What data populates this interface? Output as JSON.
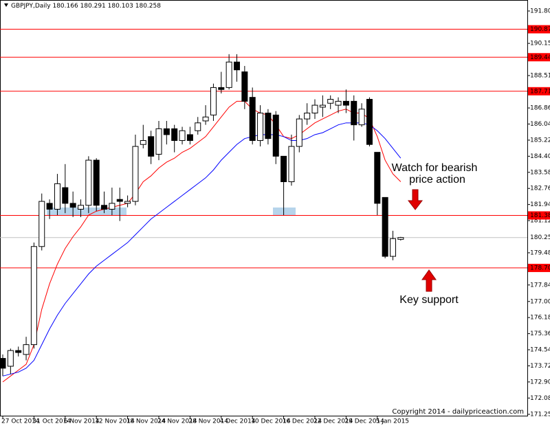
{
  "chart_data": {
    "type": "candlestick",
    "symbol": "GBPJPY,Daily",
    "header_values": [
      180.166,
      180.291,
      180.103,
      180.258
    ],
    "categories": [
      "27 Oct 2014",
      null,
      null,
      null,
      "31 Oct 2014",
      null,
      null,
      null,
      "6 Nov 2014",
      null,
      null,
      null,
      "12 Nov 2014",
      null,
      null,
      null,
      "18 Nov 2014",
      null,
      null,
      null,
      "24 Nov 2014",
      null,
      null,
      null,
      "28 Nov 2014",
      null,
      null,
      null,
      "4 Dec 2014",
      null,
      null,
      null,
      "10 Dec 2014",
      null,
      null,
      null,
      "16 Dec 2014",
      null,
      null,
      null,
      "22 Dec 2014",
      null,
      null,
      null,
      "29 Dec 2014",
      null,
      null,
      null,
      "5 Jan 2015",
      null,
      null,
      null
    ],
    "open": [
      174.1,
      173.7,
      174.5,
      174.3,
      174.8,
      179.8,
      182.0,
      181.7,
      182.8,
      182.0,
      181.7,
      181.9,
      184.2,
      181.9,
      181.7,
      182.2,
      182.0,
      182.1,
      185.0,
      185.4,
      184.5,
      185.8,
      185.8,
      185.2,
      185.5,
      185.7,
      186.2,
      186.5,
      187.9,
      187.9,
      189.2,
      188.7,
      187.4,
      185.2,
      186.6,
      186.5,
      184.4,
      183.1,
      184.9,
      186.3,
      186.6,
      186.9,
      187.1,
      187.0,
      187.2,
      187.2,
      186.0,
      187.3,
      184.6,
      182.3,
      179.3,
      180.166
    ],
    "high": [
      174.3,
      174.6,
      174.7,
      175.2,
      180.0,
      182.5,
      182.2,
      183.5,
      184.0,
      182.6,
      182.2,
      184.4,
      184.3,
      182.6,
      182.8,
      182.8,
      182.4,
      185.5,
      186.0,
      185.7,
      186.2,
      186.2,
      186.0,
      185.9,
      185.9,
      186.4,
      187.0,
      188.1,
      188.7,
      189.6,
      189.6,
      189.0,
      187.9,
      187.0,
      186.8,
      186.7,
      184.4,
      185.5,
      186.5,
      187.1,
      187.3,
      187.5,
      187.5,
      187.4,
      187.8,
      187.5,
      187.1,
      187.4,
      184.6,
      182.3,
      180.6,
      180.291
    ],
    "low": [
      173.2,
      173.3,
      174.2,
      174.0,
      174.6,
      179.6,
      181.2,
      181.4,
      181.5,
      181.3,
      181.3,
      181.5,
      181.6,
      181.5,
      181.4,
      181.1,
      181.8,
      181.9,
      184.8,
      184.0,
      184.2,
      185.0,
      184.6,
      185.0,
      185.0,
      185.5,
      186.0,
      186.2,
      187.6,
      187.8,
      188.2,
      186.8,
      185.0,
      184.9,
      185.0,
      184.0,
      181.4,
      182.9,
      184.6,
      186.0,
      186.3,
      186.4,
      186.8,
      186.6,
      186.6,
      185.2,
      185.9,
      184.9,
      181.4,
      179.2,
      179.1,
      180.103
    ],
    "close": [
      173.6,
      174.5,
      174.4,
      174.8,
      179.8,
      182.1,
      181.7,
      183.0,
      182.0,
      181.8,
      181.9,
      184.2,
      181.9,
      181.7,
      182.0,
      182.1,
      182.1,
      184.9,
      185.2,
      184.4,
      185.8,
      185.5,
      185.2,
      185.7,
      185.2,
      186.1,
      186.4,
      187.9,
      187.8,
      189.2,
      188.8,
      187.2,
      185.2,
      186.6,
      185.3,
      184.4,
      183.1,
      184.9,
      186.3,
      186.6,
      187.0,
      187.0,
      187.3,
      187.2,
      187.0,
      186.0,
      186.8,
      185.0,
      182.0,
      179.3,
      180.2,
      180.258
    ],
    "lines": [
      {
        "color": "#ff0000",
        "values": [
          172.9,
          173.2,
          173.5,
          173.8,
          174.8,
          176.6,
          177.9,
          178.9,
          179.7,
          180.3,
          180.8,
          181.4,
          181.6,
          181.7,
          181.8,
          181.9,
          182.0,
          182.5,
          183.1,
          183.4,
          183.8,
          184.1,
          184.3,
          184.6,
          184.8,
          185.1,
          185.4,
          185.9,
          186.4,
          186.9,
          187.2,
          187.2,
          186.8,
          186.6,
          186.5,
          186.0,
          185.4,
          185.3,
          185.5,
          185.8,
          186.1,
          186.3,
          186.5,
          186.7,
          186.8,
          186.6,
          186.6,
          186.3,
          185.4,
          184.2,
          183.5,
          183.1
        ]
      },
      {
        "color": "#0000ff",
        "values": [
          173.2,
          173.3,
          173.4,
          173.6,
          174.0,
          174.8,
          175.6,
          176.3,
          176.9,
          177.4,
          177.9,
          178.4,
          178.8,
          179.1,
          179.4,
          179.7,
          180.0,
          180.4,
          180.8,
          181.2,
          181.5,
          181.8,
          182.1,
          182.4,
          182.7,
          183.0,
          183.3,
          183.7,
          184.2,
          184.6,
          185.0,
          185.3,
          185.4,
          185.5,
          185.5,
          185.5,
          185.4,
          185.2,
          185.2,
          185.3,
          185.5,
          185.6,
          185.8,
          186.0,
          186.1,
          186.1,
          186.1,
          186.0,
          185.7,
          185.3,
          184.8,
          184.3
        ]
      }
    ],
    "levels": [
      {
        "value": 190.87,
        "label": "190.870"
      },
      {
        "value": 189.445,
        "label": "189.445"
      },
      {
        "value": 187.711,
        "label": "187.711"
      },
      {
        "value": 181.384,
        "label": "181.384"
      },
      {
        "value": 178.709,
        "label": "178.709"
      }
    ],
    "level_color": "#ff0000",
    "current_price": 180.258,
    "ylim": [
      171.18,
      192.36
    ],
    "yticks": [
      {
        "value": 191.8,
        "label": "191.800"
      },
      {
        "value": 190.15,
        "label": "190.150"
      },
      {
        "value": 188.51,
        "label": "188.510"
      },
      {
        "value": 186.86,
        "label": "186.860"
      },
      {
        "value": 186.04,
        "label": "186.040"
      },
      {
        "value": 185.22,
        "label": "185.220"
      },
      {
        "value": 184.4,
        "label": "184.400"
      },
      {
        "value": 183.58,
        "label": "183.580"
      },
      {
        "value": 182.76,
        "label": "182.760"
      },
      {
        "value": 181.94,
        "label": "181.940"
      },
      {
        "value": 181.12,
        "label": "181.120"
      },
      {
        "value": 179.48,
        "label": "179.480"
      },
      {
        "value": 177.84,
        "label": "177.840"
      },
      {
        "value": 177,
        "label": "177.000"
      },
      {
        "value": 176.18,
        "label": "176.180"
      },
      {
        "value": 175.36,
        "label": "175.360"
      },
      {
        "value": 174.54,
        "label": "174.540"
      },
      {
        "value": 173.72,
        "label": "173.720"
      },
      {
        "value": 172.9,
        "label": "172.900"
      },
      {
        "value": 172.08,
        "label": "172.080"
      },
      {
        "value": 171.25,
        "label": "171.250"
      }
    ],
    "annotations": [
      "Watch for bearish",
      "price action",
      "Key support"
    ],
    "copyright": "Copyright 2014 - dailypriceaction.com"
  }
}
